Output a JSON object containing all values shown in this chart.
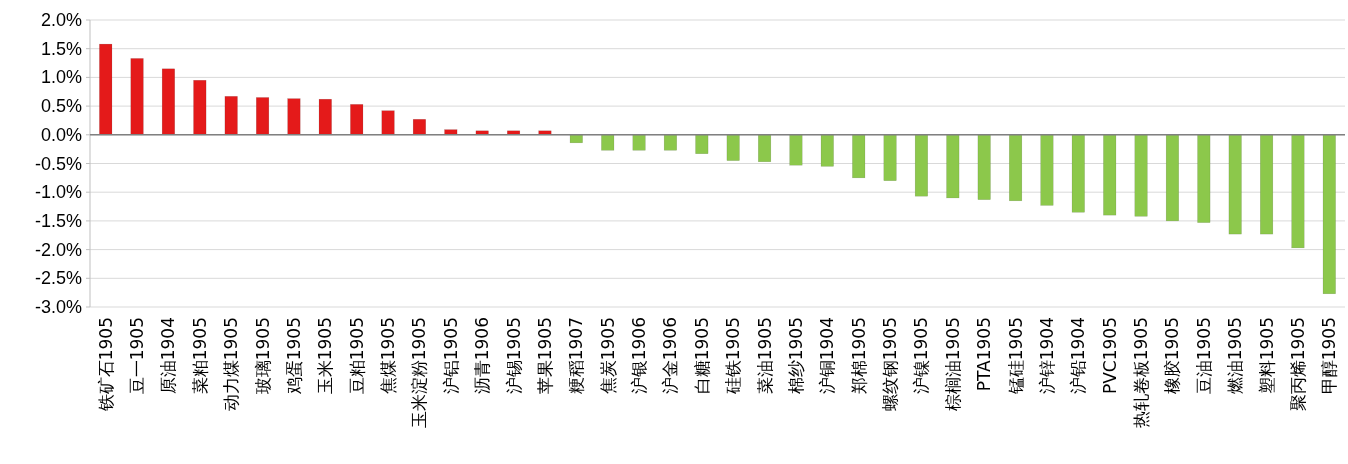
{
  "chart_data": {
    "type": "bar",
    "categories": [
      "铁矿石1905",
      "豆一1905",
      "原油1904",
      "菜粕1905",
      "动力煤1905",
      "玻璃1905",
      "鸡蛋1905",
      "玉米1905",
      "豆粕1905",
      "焦煤1905",
      "玉米淀粉1905",
      "沪铝1905",
      "沥青1906",
      "沪锡1905",
      "苹果1905",
      "粳稻1907",
      "焦炭1905",
      "沪银1906",
      "沪金1906",
      "白糖1905",
      "硅铁1905",
      "菜油1905",
      "棉纱1905",
      "沪铜1904",
      "郑棉1905",
      "螺纹钢1905",
      "沪镍1905",
      "棕榈油1905",
      "PTA1905",
      "锰硅1905",
      "沪锌1904",
      "沪铅1904",
      "PVC1905",
      "热轧卷板1905",
      "橡胶1905",
      "豆油1905",
      "燃油1905",
      "塑料1905",
      "聚丙烯1905",
      "甲醇1905"
    ],
    "values": [
      1.58,
      1.33,
      1.15,
      0.95,
      0.67,
      0.65,
      0.63,
      0.62,
      0.53,
      0.42,
      0.27,
      0.09,
      0.07,
      0.07,
      0.07,
      -0.14,
      -0.27,
      -0.27,
      -0.27,
      -0.33,
      -0.45,
      -0.47,
      -0.53,
      -0.55,
      -0.75,
      -0.8,
      -1.07,
      -1.1,
      -1.13,
      -1.15,
      -1.23,
      -1.35,
      -1.4,
      -1.42,
      -1.5,
      -1.53,
      -1.73,
      -1.73,
      -1.97,
      -2.77
    ],
    "colors": [
      "#e41a1a",
      "#e41a1a",
      "#e41a1a",
      "#e41a1a",
      "#e41a1a",
      "#e41a1a",
      "#e41a1a",
      "#e41a1a",
      "#e41a1a",
      "#e41a1a",
      "#e41a1a",
      "#e41a1a",
      "#e41a1a",
      "#e41a1a",
      "#e41a1a",
      "#8cc84b",
      "#8cc84b",
      "#8cc84b",
      "#8cc84b",
      "#8cc84b",
      "#8cc84b",
      "#8cc84b",
      "#8cc84b",
      "#8cc84b",
      "#8cc84b",
      "#8cc84b",
      "#8cc84b",
      "#8cc84b",
      "#8cc84b",
      "#8cc84b",
      "#8cc84b",
      "#8cc84b",
      "#8cc84b",
      "#8cc84b",
      "#8cc84b",
      "#8cc84b",
      "#8cc84b",
      "#8cc84b",
      "#8cc84b",
      "#8cc84b"
    ],
    "ylim": [
      -3,
      2
    ],
    "yticks": [
      {
        "value": 2,
        "label": "2.0%"
      },
      {
        "value": 1.5,
        "label": "1.5%"
      },
      {
        "value": 1,
        "label": "1.0%"
      },
      {
        "value": 0.5,
        "label": "0.5%"
      },
      {
        "value": 0,
        "label": "0.0%"
      },
      {
        "value": -0.5,
        "label": "-0.5%"
      },
      {
        "value": -1,
        "label": "-1.0%"
      },
      {
        "value": -1.5,
        "label": "-1.5%"
      },
      {
        "value": -2,
        "label": "-2.0%"
      },
      {
        "value": -2.5,
        "label": "-2.5%"
      },
      {
        "value": -3,
        "label": "-3.0%"
      }
    ],
    "grid": "y"
  }
}
